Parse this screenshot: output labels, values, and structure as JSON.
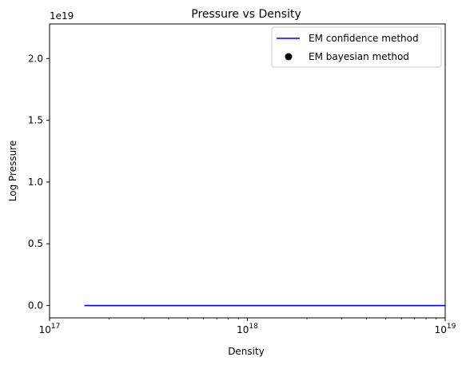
{
  "chart_data": {
    "type": "line",
    "title": "Pressure vs Density",
    "xlabel": "Density",
    "ylabel": "Log Pressure",
    "x_scale": "log",
    "y_scale": "linear",
    "xlim": [
      1e+17,
      1e+19
    ],
    "ylim": [
      -1e+18,
      2.28e+19
    ],
    "y_offset_label": "1e19",
    "x_ticks": [
      {
        "value": 1e+17,
        "base": "10",
        "exp": "17"
      },
      {
        "value": 1e+18,
        "base": "10",
        "exp": "18"
      },
      {
        "value": 1e+19,
        "base": "10",
        "exp": "19"
      }
    ],
    "y_ticks": [
      {
        "value": 0.0,
        "label": "0.0"
      },
      {
        "value": 5e+18,
        "label": "0.5"
      },
      {
        "value": 1e+19,
        "label": "1.0"
      },
      {
        "value": 1.5e+19,
        "label": "1.5"
      },
      {
        "value": 2e+19,
        "label": "2.0"
      }
    ],
    "grid": false,
    "legend_position": "top-right",
    "series": [
      {
        "name": "EM confidence method",
        "kind": "line",
        "color": "#0000ff",
        "x": [
          1.5e+17,
          1e+19
        ],
        "y": [
          0,
          0
        ]
      },
      {
        "name": "EM bayesian method",
        "kind": "marker",
        "color": "#000000",
        "x": [],
        "y": []
      }
    ]
  }
}
